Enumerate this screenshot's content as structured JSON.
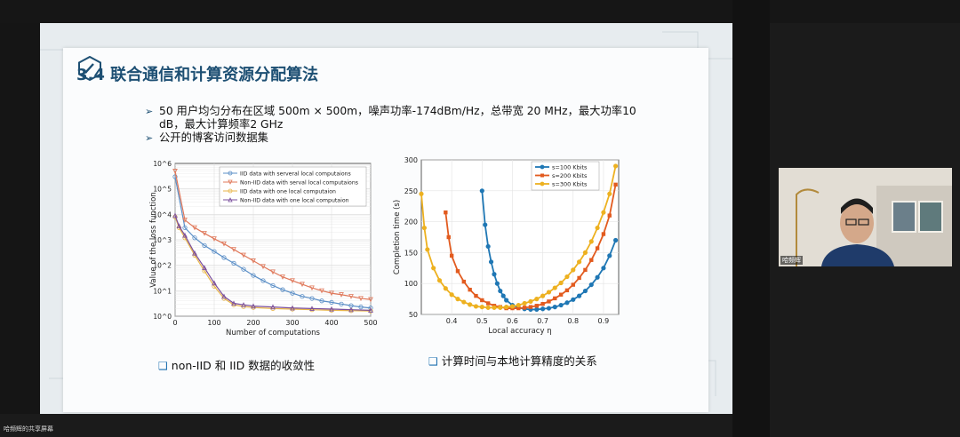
{
  "slide": {
    "title": "3.4 联合通信和计算资源分配算法",
    "bullets": [
      "50 用户均匀分布在区域 500m × 500m，噪声功率-174dBm/Hz，总带宽 20 MHz，最大功率10 dB，最大计算频率2 GHz",
      "公开的博客访问数据集"
    ],
    "caption_left": "non-IID 和 IID 数据的收敛性",
    "caption_right": "计算时间与本地计算精度的关系"
  },
  "chart_data": [
    {
      "type": "line",
      "xlabel": "Number of computations",
      "ylabel": "Value of the loss function",
      "xlim": [
        0,
        500
      ],
      "ylim_log10": [
        0,
        6
      ],
      "yscale": "log",
      "xticks": [
        "0",
        "100",
        "200",
        "300",
        "400",
        "500"
      ],
      "yticks": [
        "10^0",
        "10^1",
        "10^2",
        "10^3",
        "10^4",
        "10^5",
        "10^6"
      ],
      "grid": true,
      "legend": "top-right",
      "series": [
        {
          "name": "IID data with serveral local computaions",
          "color": "#5b8fc7",
          "marker": "circle",
          "x": [
            0,
            25,
            50,
            75,
            100,
            125,
            150,
            175,
            200,
            225,
            250,
            275,
            300,
            325,
            350,
            375,
            400,
            425,
            450,
            475,
            500
          ],
          "y": [
            300000,
            3000,
            1200,
            600,
            350,
            200,
            120,
            70,
            40,
            25,
            16,
            11,
            8,
            6,
            5,
            4,
            3.5,
            3,
            2.6,
            2.3,
            2.1
          ]
        },
        {
          "name": "Non-IID data with serval local computaions",
          "color": "#e0785a",
          "marker": "triangle-down",
          "x": [
            0,
            25,
            50,
            75,
            100,
            125,
            150,
            175,
            200,
            225,
            250,
            275,
            300,
            325,
            350,
            375,
            400,
            425,
            450,
            475,
            500
          ],
          "y": [
            500000,
            6000,
            3000,
            1800,
            1100,
            700,
            420,
            250,
            150,
            90,
            55,
            35,
            25,
            18,
            13,
            10,
            8,
            7,
            6,
            5,
            4.5
          ]
        },
        {
          "name": "IID data with one local computaion",
          "color": "#e8b64a",
          "marker": "circle",
          "x": [
            0,
            10,
            25,
            50,
            75,
            100,
            125,
            150,
            175,
            200,
            250,
            300,
            350,
            400,
            450,
            500
          ],
          "y": [
            8000,
            3000,
            1200,
            250,
            60,
            15,
            5,
            2.8,
            2.4,
            2.2,
            2,
            1.9,
            1.8,
            1.7,
            1.65,
            1.6
          ]
        },
        {
          "name": "Non-IID data with one local computaion",
          "color": "#7a4e9c",
          "marker": "triangle-up",
          "x": [
            0,
            10,
            25,
            50,
            75,
            100,
            125,
            150,
            175,
            200,
            250,
            300,
            350,
            400,
            450,
            500
          ],
          "y": [
            9000,
            3500,
            1500,
            300,
            80,
            20,
            6,
            3.2,
            2.8,
            2.5,
            2.3,
            2.1,
            2,
            1.9,
            1.8,
            1.7
          ]
        }
      ]
    },
    {
      "type": "line",
      "xlabel": "Local accuracy η",
      "ylabel": "Completion time (s)",
      "xlim": [
        0.3,
        0.95
      ],
      "ylim": [
        50,
        300
      ],
      "xticks": [
        "0.4",
        "0.5",
        "0.6",
        "0.7",
        "0.8",
        "0.9"
      ],
      "yticks": [
        "50",
        "100",
        "150",
        "200",
        "250",
        "300"
      ],
      "grid": true,
      "legend": "top-center",
      "series": [
        {
          "name": "s=100 Kbits",
          "color": "#1f77b4",
          "marker": "circle",
          "x": [
            0.5,
            0.51,
            0.52,
            0.53,
            0.54,
            0.55,
            0.56,
            0.57,
            0.58,
            0.6,
            0.62,
            0.64,
            0.66,
            0.68,
            0.7,
            0.72,
            0.74,
            0.76,
            0.78,
            0.8,
            0.82,
            0.84,
            0.86,
            0.88,
            0.9,
            0.92,
            0.94
          ],
          "y": [
            250,
            195,
            160,
            135,
            115,
            100,
            88,
            80,
            73,
            65,
            61,
            59,
            58,
            58,
            59,
            60,
            62,
            65,
            69,
            74,
            80,
            88,
            98,
            110,
            125,
            145,
            170
          ]
        },
        {
          "name": "s=200 Kbits",
          "color": "#e25b1f",
          "marker": "square",
          "x": [
            0.38,
            0.39,
            0.4,
            0.42,
            0.44,
            0.46,
            0.48,
            0.5,
            0.52,
            0.54,
            0.56,
            0.58,
            0.6,
            0.62,
            0.64,
            0.66,
            0.68,
            0.7,
            0.72,
            0.74,
            0.76,
            0.78,
            0.8,
            0.82,
            0.84,
            0.86,
            0.88,
            0.9,
            0.92,
            0.94
          ],
          "y": [
            215,
            175,
            145,
            120,
            103,
            90,
            80,
            73,
            68,
            64,
            62,
            60,
            60,
            60,
            61,
            62,
            64,
            67,
            71,
            76,
            82,
            89,
            98,
            109,
            122,
            138,
            157,
            180,
            210,
            260
          ]
        },
        {
          "name": "s=300 Kbits",
          "color": "#edb120",
          "marker": "circle",
          "x": [
            0.3,
            0.31,
            0.32,
            0.34,
            0.36,
            0.38,
            0.4,
            0.42,
            0.44,
            0.46,
            0.48,
            0.5,
            0.52,
            0.54,
            0.56,
            0.58,
            0.6,
            0.62,
            0.64,
            0.66,
            0.68,
            0.7,
            0.72,
            0.74,
            0.76,
            0.78,
            0.8,
            0.82,
            0.84,
            0.86,
            0.88,
            0.9,
            0.92,
            0.94
          ],
          "y": [
            245,
            190,
            155,
            125,
            105,
            92,
            82,
            75,
            70,
            66,
            63,
            62,
            61,
            61,
            61,
            62,
            63,
            65,
            68,
            71,
            75,
            80,
            86,
            93,
            101,
            111,
            122,
            135,
            150,
            168,
            190,
            215,
            245,
            290
          ]
        }
      ]
    }
  ],
  "overlay": {
    "screen_share_label": "哈频辉的共享屏幕",
    "participant_name": "哈频辉"
  }
}
